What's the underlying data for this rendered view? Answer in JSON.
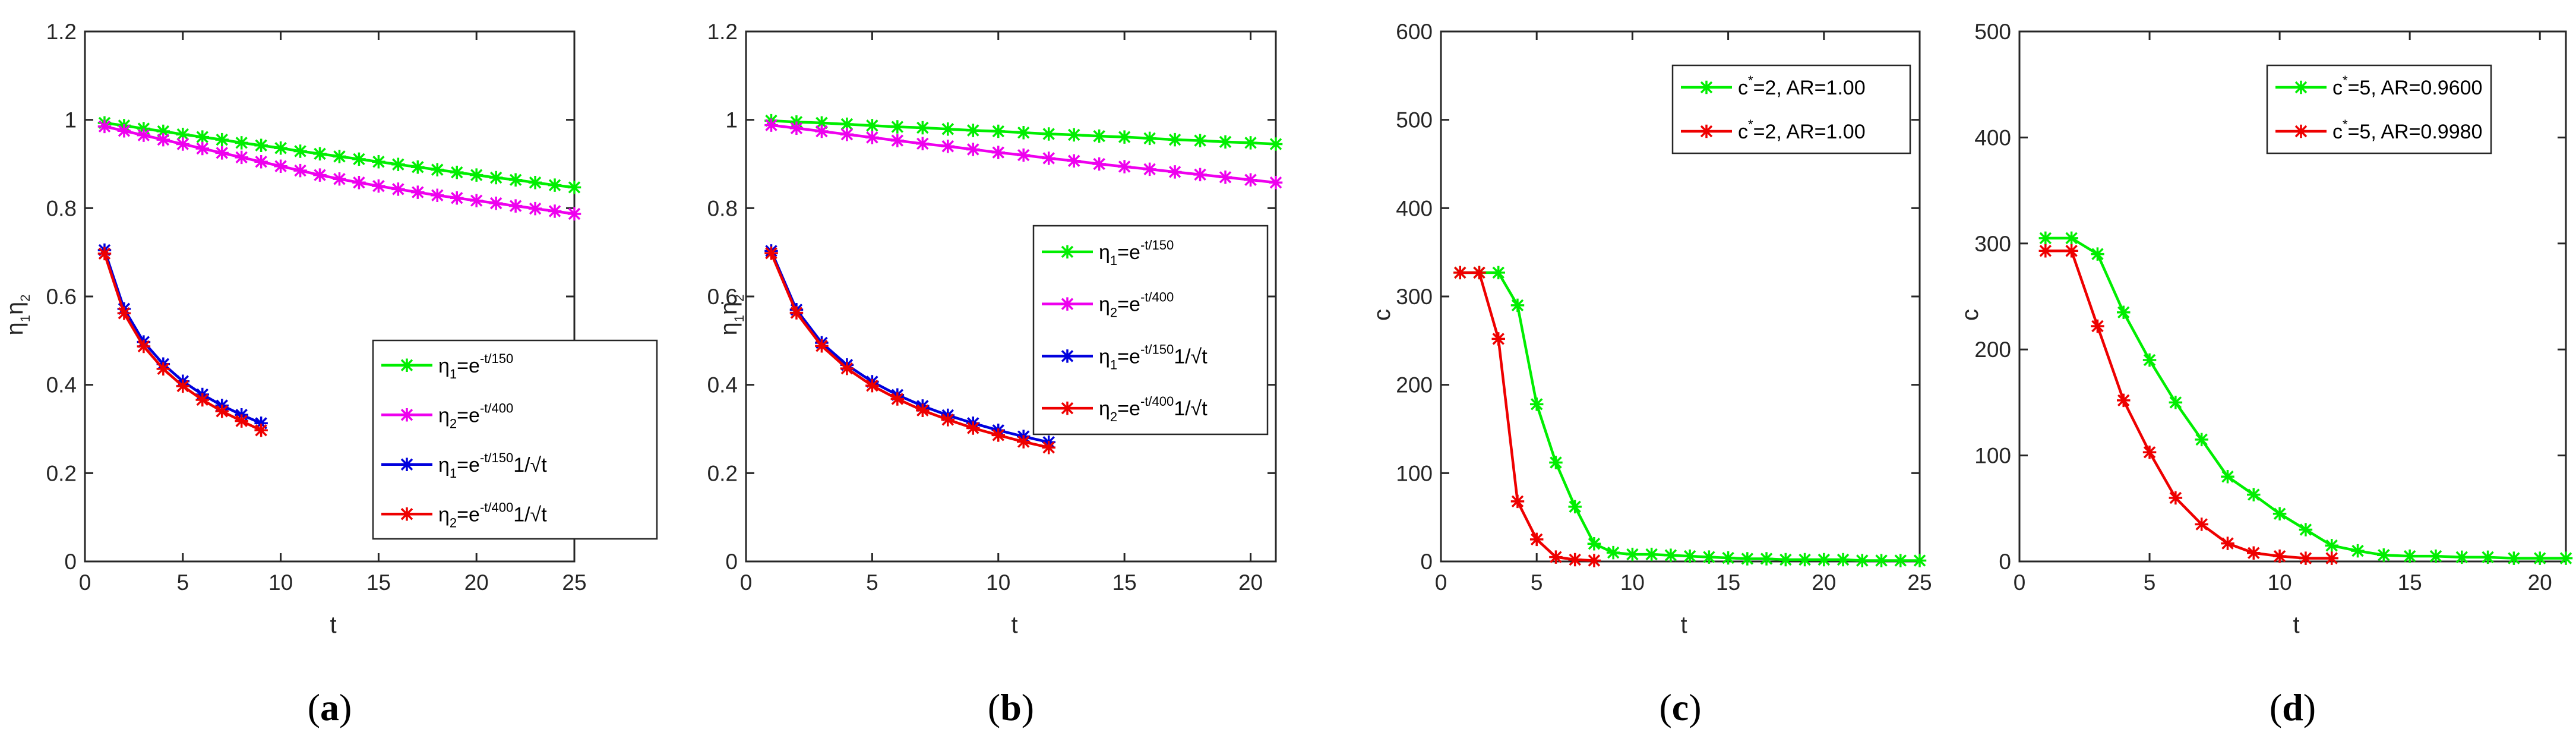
{
  "chart_data": [
    {
      "id": "a",
      "type": "line",
      "caption": {
        "open": "(",
        "letter": "a",
        "close": ")"
      },
      "xlabel": "t",
      "ylabel": {
        "p1": "η",
        "s1": "1",
        "p2": "η",
        "s2": "2"
      },
      "xlim": [
        0,
        25
      ],
      "ylim": [
        0,
        1.2
      ],
      "xticks": [
        0,
        5,
        10,
        15,
        20,
        25
      ],
      "yticks": [
        0,
        0.2,
        0.4,
        0.6,
        0.8,
        1,
        1.2
      ],
      "ytick_labels": [
        "0",
        "0.2",
        "0.4",
        "0.6",
        "0.8",
        "1",
        "1.2"
      ],
      "legend_position": "lower-right",
      "series": [
        {
          "color": "#00ee00",
          "label": {
            "eta": "η",
            "sub": "1",
            "eq": "=e",
            "exp": "-t/150",
            "tail": ""
          },
          "x": [
            1,
            2,
            3,
            4,
            5,
            6,
            7,
            8,
            9,
            10,
            11,
            12,
            13,
            14,
            15,
            16,
            17,
            18,
            19,
            20,
            21,
            22,
            23,
            24,
            25
          ],
          "y": [
            0.993,
            0.987,
            0.98,
            0.974,
            0.967,
            0.961,
            0.955,
            0.948,
            0.942,
            0.936,
            0.929,
            0.923,
            0.917,
            0.911,
            0.905,
            0.899,
            0.893,
            0.887,
            0.881,
            0.875,
            0.869,
            0.864,
            0.858,
            0.852,
            0.847
          ]
        },
        {
          "color": "#ee00ee",
          "label": {
            "eta": "η",
            "sub": "2",
            "eq": "=e",
            "exp": "-t/400",
            "tail": ""
          },
          "x": [
            1,
            2,
            3,
            4,
            5,
            6,
            7,
            8,
            9,
            10,
            11,
            12,
            13,
            14,
            15,
            16,
            17,
            18,
            19,
            20,
            21,
            22,
            23,
            24,
            25
          ],
          "y": [
            0.985,
            0.975,
            0.965,
            0.955,
            0.945,
            0.935,
            0.925,
            0.915,
            0.905,
            0.895,
            0.885,
            0.875,
            0.866,
            0.858,
            0.85,
            0.843,
            0.836,
            0.829,
            0.823,
            0.817,
            0.811,
            0.805,
            0.799,
            0.793,
            0.787
          ]
        },
        {
          "color": "#0000dd",
          "label": {
            "eta": "η",
            "sub": "1",
            "eq": "=e",
            "exp": "-t/150",
            "tail": "1/√t"
          },
          "x": [
            1,
            2,
            3,
            4,
            5,
            6,
            7,
            8,
            9
          ],
          "y": [
            0.705,
            0.572,
            0.497,
            0.447,
            0.408,
            0.378,
            0.353,
            0.332,
            0.313
          ]
        },
        {
          "color": "#ee0000",
          "label": {
            "eta": "η",
            "sub": "2",
            "eq": "=e",
            "exp": "-t/400",
            "tail": "1/√t"
          },
          "x": [
            1,
            2,
            3,
            4,
            5,
            6,
            7,
            8,
            9
          ],
          "y": [
            0.697,
            0.562,
            0.487,
            0.436,
            0.397,
            0.366,
            0.34,
            0.318,
            0.297
          ]
        }
      ]
    },
    {
      "id": "b",
      "type": "line",
      "caption": {
        "open": "(",
        "letter": "b",
        "close": ")"
      },
      "xlabel": "t",
      "ylabel": {
        "p1": "η",
        "s1": "1",
        "p2": "η",
        "s2": "2"
      },
      "xlim": [
        0,
        21
      ],
      "ylim": [
        0,
        1.2
      ],
      "xticks": [
        0,
        5,
        10,
        15,
        20
      ],
      "yticks": [
        0,
        0.2,
        0.4,
        0.6,
        0.8,
        1,
        1.2
      ],
      "ytick_labels": [
        "0",
        "0.2",
        "0.4",
        "0.6",
        "0.8",
        "1",
        "1.2"
      ],
      "legend_position": "right",
      "series": [
        {
          "color": "#00ee00",
          "label": {
            "eta": "η",
            "sub": "1",
            "eq": "=e",
            "exp": "-t/150",
            "tail": ""
          },
          "x": [
            1,
            2,
            3,
            4,
            5,
            6,
            7,
            8,
            9,
            10,
            11,
            12,
            13,
            14,
            15,
            16,
            17,
            18,
            19,
            20,
            21
          ],
          "y": [
            0.998,
            0.995,
            0.993,
            0.99,
            0.987,
            0.984,
            0.982,
            0.979,
            0.976,
            0.974,
            0.971,
            0.968,
            0.966,
            0.963,
            0.961,
            0.958,
            0.955,
            0.953,
            0.95,
            0.948,
            0.945
          ]
        },
        {
          "color": "#ee00ee",
          "label": {
            "eta": "η",
            "sub": "2",
            "eq": "=e",
            "exp": "-t/400",
            "tail": ""
          },
          "x": [
            1,
            2,
            3,
            4,
            5,
            6,
            7,
            8,
            9,
            10,
            11,
            12,
            13,
            14,
            15,
            16,
            17,
            18,
            19,
            20,
            21
          ],
          "y": [
            0.988,
            0.981,
            0.974,
            0.967,
            0.96,
            0.953,
            0.946,
            0.94,
            0.933,
            0.926,
            0.92,
            0.913,
            0.907,
            0.9,
            0.894,
            0.888,
            0.882,
            0.876,
            0.87,
            0.864,
            0.858
          ]
        },
        {
          "color": "#0000dd",
          "label": {
            "eta": "η",
            "sub": "1",
            "eq": "=e",
            "exp": "-t/150",
            "tail": "1/√t"
          },
          "x": [
            1,
            2,
            3,
            4,
            5,
            6,
            7,
            8,
            9,
            10,
            11,
            12
          ],
          "y": [
            0.703,
            0.57,
            0.495,
            0.445,
            0.407,
            0.377,
            0.352,
            0.331,
            0.313,
            0.297,
            0.283,
            0.27
          ]
        },
        {
          "color": "#ee0000",
          "label": {
            "eta": "η",
            "sub": "2",
            "eq": "=e",
            "exp": "-t/400",
            "tail": "1/√t"
          },
          "x": [
            1,
            2,
            3,
            4,
            5,
            6,
            7,
            8,
            9,
            10,
            11,
            12
          ],
          "y": [
            0.698,
            0.563,
            0.488,
            0.437,
            0.398,
            0.368,
            0.342,
            0.321,
            0.302,
            0.286,
            0.271,
            0.258
          ]
        }
      ]
    },
    {
      "id": "c",
      "type": "line",
      "caption": {
        "open": "(",
        "letter": "c",
        "close": ")"
      },
      "xlabel": "t",
      "ylabel": {
        "p1": "c",
        "s1": "",
        "p2": "",
        "s2": ""
      },
      "xlim": [
        0,
        25
      ],
      "ylim": [
        0,
        600
      ],
      "xticks": [
        0,
        5,
        10,
        15,
        20,
        25
      ],
      "yticks": [
        0,
        100,
        200,
        300,
        400,
        500,
        600
      ],
      "ytick_labels": [
        "0",
        "100",
        "200",
        "300",
        "400",
        "500",
        "600"
      ],
      "legend_position": "top-right",
      "series": [
        {
          "color": "#00ee00",
          "label": {
            "pre": "c",
            "sup": "*",
            "post": "=2, AR=1.00"
          },
          "x": [
            1,
            2,
            3,
            4,
            5,
            6,
            7,
            8,
            9,
            10,
            11,
            12,
            13,
            14,
            15,
            16,
            17,
            18,
            19,
            20,
            21,
            22,
            23,
            24,
            25
          ],
          "y": [
            327,
            327,
            327,
            290,
            178,
            112,
            62,
            20,
            10,
            8,
            8,
            7,
            6,
            5,
            4,
            3,
            3,
            2,
            2,
            2,
            2,
            1,
            1,
            1,
            1
          ]
        },
        {
          "color": "#ee0000",
          "label": {
            "pre": "c",
            "sup": "*",
            "post": "=2, AR=1.00"
          },
          "x": [
            1,
            2,
            3,
            4,
            5,
            6,
            7,
            8
          ],
          "y": [
            327,
            327,
            252,
            68,
            25,
            5,
            2,
            1
          ]
        }
      ]
    },
    {
      "id": "d",
      "type": "line",
      "caption": {
        "open": "(",
        "letter": "d",
        "close": ")"
      },
      "xlabel": "t",
      "ylabel": {
        "p1": "c",
        "s1": "",
        "p2": "",
        "s2": ""
      },
      "xlim": [
        0,
        21
      ],
      "ylim": [
        0,
        500
      ],
      "xticks": [
        0,
        5,
        10,
        15,
        20
      ],
      "yticks": [
        0,
        100,
        200,
        300,
        400,
        500
      ],
      "ytick_labels": [
        "0",
        "100",
        "200",
        "300",
        "400",
        "500"
      ],
      "legend_position": "top-right",
      "series": [
        {
          "color": "#00ee00",
          "label": {
            "pre": "c",
            "sup": "*",
            "post": "=5, AR=0.9600"
          },
          "x": [
            1,
            2,
            3,
            4,
            5,
            6,
            7,
            8,
            9,
            10,
            11,
            12,
            13,
            14,
            15,
            16,
            17,
            18,
            19,
            20,
            21
          ],
          "y": [
            305,
            305,
            290,
            235,
            190,
            150,
            115,
            80,
            63,
            45,
            30,
            15,
            10,
            6,
            5,
            5,
            4,
            4,
            3,
            3,
            3
          ]
        },
        {
          "color": "#ee0000",
          "label": {
            "pre": "c",
            "sup": "*",
            "post": "=5, AR=0.9980"
          },
          "x": [
            1,
            2,
            3,
            4,
            5,
            6,
            7,
            8,
            9,
            10,
            11,
            12
          ],
          "y": [
            293,
            293,
            222,
            152,
            103,
            60,
            35,
            17,
            8,
            5,
            3,
            3
          ]
        }
      ]
    }
  ]
}
